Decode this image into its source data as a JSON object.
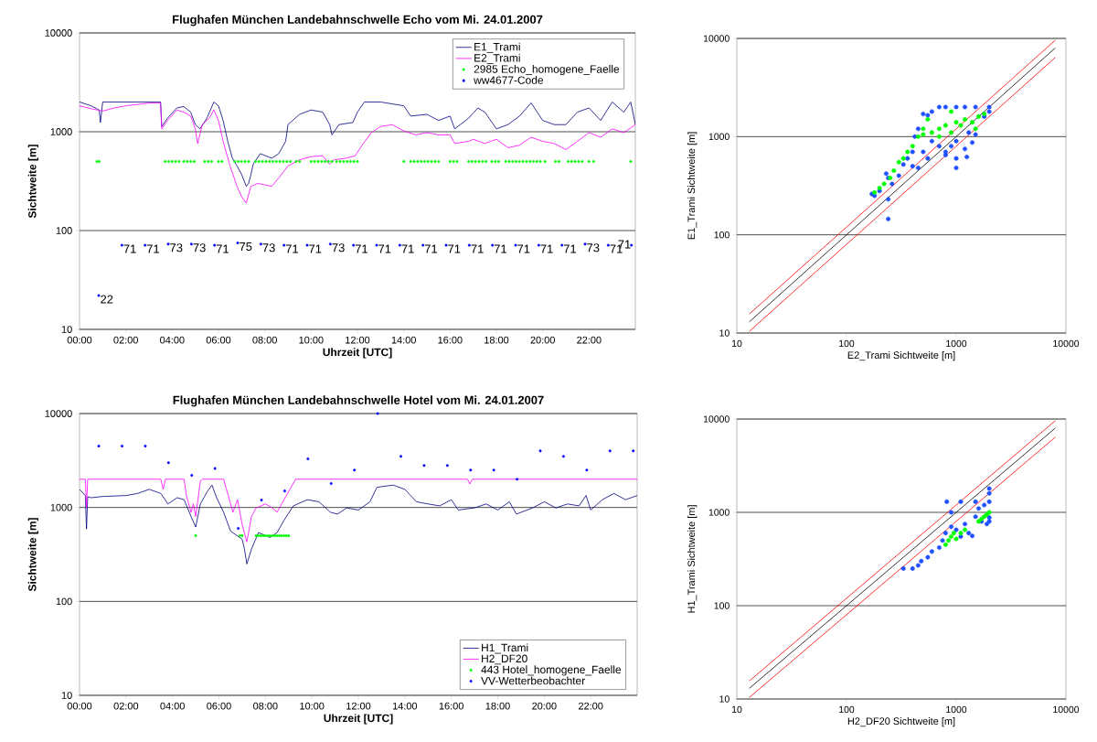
{
  "chart_data": [
    {
      "type": "line",
      "title": "Flughafen München Landebahnschwelle Echo vom Mi. 24.01.2007",
      "xlabel": "Uhrzeit [UTC]",
      "ylabel": "Sichtweite [m]",
      "log": "y",
      "grid": "y",
      "legend": "top right",
      "xlim": [
        0,
        24
      ],
      "ylim": [
        10,
        10000
      ],
      "xticks": [
        {
          "value": 0,
          "label": "00:00"
        },
        {
          "value": 2,
          "label": "02:00"
        },
        {
          "value": 4,
          "label": "04:00"
        },
        {
          "value": 6,
          "label": "06:00"
        },
        {
          "value": 8,
          "label": "08:00"
        },
        {
          "value": 10,
          "label": "10:00"
        },
        {
          "value": 12,
          "label": "12:00"
        },
        {
          "value": 14,
          "label": "14:00"
        },
        {
          "value": 16,
          "label": "16:00"
        },
        {
          "value": 18,
          "label": "18:00"
        },
        {
          "value": 20,
          "label": "20:00"
        },
        {
          "value": 22,
          "label": "22:00"
        }
      ],
      "yticks": [
        10,
        100,
        1000,
        10000
      ],
      "series": [
        {
          "name": "E1_Trami",
          "type": "line",
          "color": "#000080",
          "x": [
            0,
            0.5,
            0.85,
            0.9,
            1.0,
            2,
            3,
            3.5,
            3.55,
            3.8,
            4.2,
            4.5,
            4.8,
            5.0,
            5.2,
            5.5,
            5.8,
            6.0,
            6.2,
            6.4,
            6.6,
            6.8,
            7.0,
            7.2,
            7.3,
            7.4,
            7.5,
            7.8,
            8.3,
            8.6,
            8.9,
            9.0,
            9.5,
            10,
            10.5,
            10.8,
            10.9,
            11.2,
            11.8,
            12.0,
            12.3,
            13,
            14,
            14.3,
            15,
            15.5,
            16,
            16.2,
            16.8,
            17.2,
            17.5,
            18,
            18.5,
            19,
            19.5,
            20,
            20.5,
            21,
            21.5,
            22,
            22.5,
            23,
            23.5,
            23.8,
            24
          ],
          "values": [
            2000,
            1830,
            1660,
            1240,
            2000,
            2000,
            2000,
            2000,
            1130,
            1370,
            1740,
            1800,
            1580,
            1180,
            1070,
            1370,
            2000,
            1830,
            1300,
            800,
            540,
            450,
            370,
            280,
            300,
            370,
            470,
            600,
            540,
            600,
            800,
            1180,
            1500,
            1660,
            1580,
            1180,
            930,
            1180,
            1240,
            1580,
            2000,
            2000,
            1830,
            1440,
            1500,
            1300,
            1440,
            1070,
            1370,
            1740,
            1580,
            1070,
            1180,
            1440,
            1960,
            1300,
            1180,
            1180,
            1580,
            1740,
            1300,
            2000,
            1580,
            2000,
            1180
          ]
        },
        {
          "name": "E2_Trami",
          "type": "line",
          "color": "#ff00ff",
          "x": [
            0,
            0.5,
            1,
            1.5,
            2,
            3,
            3.5,
            3.55,
            3.8,
            4.2,
            4.5,
            4.8,
            5.0,
            5.1,
            5.3,
            5.6,
            5.8,
            6.0,
            6.2,
            6.5,
            6.8,
            7.0,
            7.2,
            7.4,
            7.7,
            8,
            8.3,
            8.6,
            9,
            9.5,
            10,
            10.5,
            10.8,
            11,
            11.5,
            11.9,
            12.2,
            12.6,
            13,
            13.5,
            14,
            14.5,
            15,
            15.5,
            16,
            16.2,
            16.8,
            17,
            17.5,
            18,
            18.5,
            19,
            19.5,
            20,
            20.5,
            21,
            21.5,
            22,
            22.5,
            23,
            23.5,
            24
          ],
          "values": [
            1830,
            1710,
            1620,
            1740,
            1830,
            1950,
            1950,
            1070,
            1300,
            1660,
            1580,
            1440,
            1070,
            760,
            1180,
            1370,
            1660,
            1300,
            800,
            450,
            280,
            220,
            190,
            280,
            300,
            290,
            280,
            340,
            450,
            520,
            560,
            570,
            470,
            520,
            540,
            570,
            730,
            980,
            1130,
            1180,
            1020,
            930,
            980,
            930,
            930,
            760,
            800,
            840,
            760,
            840,
            690,
            730,
            880,
            800,
            760,
            660,
            800,
            980,
            880,
            1070,
            980,
            1180
          ]
        },
        {
          "name": "2985 Echo_homogene_Faelle",
          "type": "scatter",
          "marker": "circle",
          "color": "#00ff00",
          "x": [
            0.75,
            0.85,
            3.7,
            3.85,
            4.0,
            4.15,
            4.3,
            4.5,
            4.65,
            4.8,
            4.95,
            5.4,
            5.55,
            5.7,
            6.0,
            6.15,
            6.7,
            6.85,
            7.0,
            7.15,
            7.3,
            7.6,
            7.75,
            7.9,
            8.05,
            8.2,
            8.35,
            8.5,
            8.65,
            8.8,
            8.95,
            9.1,
            9.35,
            9.5,
            10.0,
            10.15,
            10.3,
            10.45,
            10.6,
            10.75,
            10.9,
            11.1,
            11.25,
            11.4,
            11.55,
            11.7,
            11.85,
            12.0,
            14.0,
            14.3,
            14.45,
            14.6,
            14.75,
            14.9,
            15.05,
            15.2,
            15.35,
            15.5,
            16.0,
            16.15,
            16.3,
            16.8,
            16.95,
            17.1,
            17.25,
            17.4,
            17.55,
            17.8,
            17.95,
            18.1,
            18.4,
            18.55,
            18.7,
            18.85,
            19.0,
            19.15,
            19.3,
            19.45,
            19.6,
            19.75,
            19.9,
            20.1,
            20.55,
            20.7,
            21.1,
            21.25,
            21.4,
            21.55,
            21.7,
            22.0,
            22.2,
            23.8
          ],
          "values": [
            500,
            500,
            500,
            500,
            500,
            500,
            500,
            500,
            500,
            500,
            500,
            500,
            500,
            500,
            500,
            500,
            500,
            500,
            500,
            500,
            500,
            500,
            500,
            500,
            500,
            500,
            500,
            500,
            500,
            500,
            500,
            500,
            500,
            500,
            500,
            500,
            500,
            500,
            500,
            500,
            500,
            500,
            500,
            500,
            500,
            500,
            500,
            500,
            500,
            500,
            500,
            500,
            500,
            500,
            500,
            500,
            500,
            500,
            500,
            500,
            500,
            500,
            500,
            500,
            500,
            500,
            500,
            500,
            500,
            500,
            500,
            500,
            500,
            500,
            500,
            500,
            500,
            500,
            500,
            500,
            500,
            500,
            500,
            500,
            500,
            500,
            500,
            500,
            500,
            500,
            500,
            500
          ]
        },
        {
          "name": "ww4677-Code",
          "type": "scatter",
          "marker": "circle",
          "color": "#0000ff",
          "x": [
            0.83,
            1.83,
            2.83,
            3.83,
            4.83,
            5.83,
            6.83,
            7.83,
            8.83,
            9.83,
            10.83,
            11.83,
            12.83,
            13.83,
            14.83,
            15.83,
            16.83,
            17.83,
            18.83,
            19.83,
            20.83,
            21.83,
            22.83,
            23.83
          ],
          "values": [
            22,
            71,
            71,
            73,
            73,
            71,
            75,
            73,
            71,
            71,
            73,
            71,
            71,
            71,
            71,
            71,
            71,
            71,
            71,
            71,
            71,
            73,
            71,
            71
          ],
          "value_labels": [
            "22",
            "71",
            "71",
            "73",
            "73",
            "71",
            "75",
            "73",
            "71",
            "71",
            "73",
            "71",
            "71",
            "71",
            "71",
            "71",
            "71",
            "71",
            "71",
            "71",
            "71",
            "73",
            "71",
            "71"
          ]
        }
      ]
    },
    {
      "type": "scatter",
      "xlabel": "E2_Trami Sichtweite [m]",
      "ylabel": "E1_Trami Sichtweite [m]",
      "log": "xy",
      "grid": "y",
      "xlim": [
        10,
        10000
      ],
      "ylim": [
        10,
        10000
      ],
      "xticks": [
        10,
        100,
        1000,
        10000
      ],
      "yticks": [
        10,
        100,
        1000,
        10000
      ],
      "series": [
        {
          "type": "scatter",
          "marker": "circle",
          "color": "#2050ff",
          "x": [
            170,
            180,
            200,
            230,
            240,
            240,
            240,
            260,
            300,
            330,
            360,
            400,
            450,
            400,
            420,
            450,
            500,
            550,
            600,
            700,
            800,
            1000,
            1200,
            1500,
            2000,
            2000,
            1800,
            1500,
            1300,
            1000,
            900,
            800,
            700,
            600,
            1000,
            1000,
            1200,
            1250,
            1400,
            800,
            550,
            500
          ],
          "values": [
            260,
            250,
            280,
            420,
            380,
            230,
            145,
            330,
            400,
            520,
            600,
            500,
            480,
            700,
            1000,
            1200,
            1700,
            1650,
            1800,
            2000,
            2000,
            2000,
            2000,
            2000,
            2000,
            1800,
            1600,
            1050,
            1100,
            900,
            800,
            700,
            800,
            900,
            480,
            600,
            750,
            620,
            870,
            650,
            600,
            700
          ]
        },
        {
          "type": "scatter",
          "marker": "circle",
          "color": "#00ff00",
          "x": [
            180,
            200,
            220,
            250,
            270,
            300,
            330,
            360,
            400,
            450,
            500,
            550,
            600,
            700,
            800,
            900,
            1000,
            1100,
            1200,
            1400,
            1600,
            1800,
            1500,
            900,
            700,
            500
          ],
          "values": [
            270,
            300,
            330,
            380,
            450,
            550,
            600,
            700,
            800,
            1000,
            1200,
            1500,
            1100,
            1200,
            1300,
            1800,
            1400,
            1300,
            1500,
            1400,
            1600,
            1700,
            1200,
            1100,
            1000,
            1050
          ]
        },
        {
          "type": "line",
          "color": "#ff0000",
          "x": [
            13,
            8000
          ],
          "values": [
            15.6,
            9600
          ]
        },
        {
          "type": "line",
          "color": "#000000",
          "x": [
            13,
            8000
          ],
          "values": [
            13,
            8000
          ]
        },
        {
          "type": "line",
          "color": "#ff0000",
          "x": [
            13,
            8000
          ],
          "values": [
            10.4,
            6400
          ]
        }
      ]
    },
    {
      "type": "line",
      "title": "Flughafen München Landebahnschwelle Hotel vom Mi. 24.01.2007",
      "xlabel": "Uhrzeit [UTC]",
      "ylabel": "Sichtweite [m]",
      "log": "y",
      "grid": "y",
      "legend": "bottom right",
      "xlim": [
        0,
        24
      ],
      "ylim": [
        10,
        10000
      ],
      "xticks": [
        {
          "value": 0,
          "label": "00:00"
        },
        {
          "value": 2,
          "label": "02:00"
        },
        {
          "value": 4,
          "label": "04:00"
        },
        {
          "value": 6,
          "label": "06:00"
        },
        {
          "value": 8,
          "label": "08:00"
        },
        {
          "value": 10,
          "label": "10:00"
        },
        {
          "value": 12,
          "label": "12:00"
        },
        {
          "value": 14,
          "label": "14:00"
        },
        {
          "value": 16,
          "label": "16:00"
        },
        {
          "value": 18,
          "label": "18:00"
        },
        {
          "value": 20,
          "label": "20:00"
        },
        {
          "value": 22,
          "label": "22:00"
        }
      ],
      "yticks": [
        10,
        100,
        1000,
        10000
      ],
      "series": [
        {
          "name": "H1_Trami",
          "type": "line",
          "color": "#000080",
          "x": [
            0,
            0.25,
            0.3,
            0.35,
            0.5,
            1,
            2,
            2.5,
            3,
            3.5,
            3.8,
            4.2,
            4.5,
            4.8,
            5.0,
            5.2,
            5.5,
            5.7,
            5.9,
            6.2,
            6.5,
            7.0,
            7.1,
            7.2,
            7.4,
            7.7,
            8.2,
            8.5,
            8.8,
            9.2,
            9.8,
            10.3,
            10.8,
            11.1,
            11.5,
            12,
            12.5,
            12.8,
            13.5,
            14,
            14.5,
            15,
            15.5,
            16,
            16.3,
            17,
            17.5,
            18,
            18.5,
            18.8,
            19.5,
            20,
            20.5,
            21,
            21.5,
            21.8,
            22,
            22.5,
            23,
            23.5,
            24
          ],
          "values": [
            1560,
            1340,
            590,
            1300,
            1270,
            1310,
            1340,
            1410,
            1560,
            1410,
            1090,
            1270,
            1210,
            800,
            620,
            1090,
            1480,
            1730,
            1270,
            890,
            560,
            460,
            360,
            250,
            360,
            540,
            480,
            540,
            730,
            1040,
            1210,
            1150,
            890,
            850,
            990,
            940,
            1150,
            1640,
            1730,
            1560,
            1150,
            1090,
            1040,
            1210,
            940,
            990,
            1090,
            940,
            1150,
            850,
            990,
            1150,
            990,
            1090,
            1040,
            1340,
            940,
            1210,
            1410,
            1210,
            1340
          ]
        },
        {
          "name": "H2_DF20",
          "type": "line",
          "color": "#ff00ff",
          "x": [
            0,
            0.25,
            0.3,
            0.35,
            3.5,
            3.6,
            3.7,
            4.5,
            4.6,
            4.8,
            4.9,
            5.0,
            5.2,
            5.3,
            6.2,
            6.4,
            6.6,
            6.8,
            7.0,
            7.2,
            7.4,
            7.6,
            8.0,
            8.3,
            8.5,
            8.7,
            9.0,
            9.3,
            16.7,
            16.8,
            16.9,
            24
          ],
          "values": [
            2000,
            2000,
            990,
            2000,
            2000,
            1560,
            2000,
            2000,
            1340,
            890,
            1090,
            800,
            1910,
            2000,
            2000,
            1340,
            890,
            1210,
            660,
            430,
            800,
            990,
            1090,
            990,
            890,
            1090,
            1480,
            2000,
            2000,
            1780,
            2000,
            2000
          ]
        },
        {
          "name": "443 Hotel_homogene_Faelle",
          "type": "scatter",
          "marker": "circle",
          "color": "#00ff00",
          "x": [
            5.0,
            6.9,
            7.0,
            7.6,
            7.7,
            7.8,
            7.9,
            8.0,
            8.1,
            8.2,
            8.3,
            8.4,
            8.5,
            8.6,
            8.7,
            8.8,
            8.9,
            9.0
          ],
          "values": [
            500,
            500,
            500,
            500,
            500,
            500,
            500,
            500,
            500,
            500,
            500,
            500,
            500,
            500,
            500,
            500,
            500,
            500
          ]
        },
        {
          "name": "VV-Wetterbeobachter",
          "type": "scatter",
          "marker": "circle",
          "color": "#0000ff",
          "x": [
            0.83,
            1.83,
            2.83,
            3.83,
            4.83,
            5.83,
            6.83,
            7.83,
            8.83,
            9.83,
            10.83,
            11.83,
            12.83,
            13.83,
            14.83,
            15.83,
            16.83,
            17.83,
            18.83,
            19.83,
            20.83,
            21.83,
            22.83,
            23.83
          ],
          "values": [
            4500,
            4500,
            4500,
            3000,
            2200,
            2600,
            600,
            1200,
            1500,
            3300,
            1800,
            2500,
            10000,
            3500,
            2800,
            2800,
            2500,
            2500,
            2000,
            4000,
            3500,
            2500,
            4000,
            4000
          ]
        }
      ]
    },
    {
      "type": "scatter",
      "xlabel": "H2_DF20 Sichtweite [m]",
      "ylabel": "H1_Trami Sichtweite [m]",
      "log": "xy",
      "grid": "y",
      "xlim": [
        10,
        10000
      ],
      "ylim": [
        10,
        10000
      ],
      "xticks": [
        10,
        100,
        1000,
        10000
      ],
      "yticks": [
        10,
        100,
        1000,
        10000
      ],
      "series": [
        {
          "type": "scatter",
          "marker": "circle",
          "color": "#2050ff",
          "x": [
            330,
            400,
            450,
            480,
            550,
            600,
            700,
            750,
            800,
            900,
            1000,
            1100,
            1200,
            1300,
            1400,
            1500,
            1600,
            1800,
            2000,
            2000,
            2000,
            2000,
            2000,
            820,
            900,
            1100,
            1500,
            1700,
            1900
          ],
          "values": [
            250,
            250,
            270,
            300,
            330,
            380,
            420,
            500,
            600,
            700,
            650,
            550,
            750,
            600,
            560,
            900,
            1100,
            1200,
            800,
            880,
            1300,
            1600,
            1800,
            1300,
            1000,
            1300,
            1300,
            800,
            750
          ]
        },
        {
          "type": "scatter",
          "marker": "circle",
          "color": "#00ff00",
          "x": [
            800,
            850,
            900,
            950,
            1000,
            1100,
            1200,
            1700,
            1800,
            1900,
            2000,
            1600
          ],
          "values": [
            450,
            500,
            550,
            600,
            520,
            600,
            650,
            850,
            900,
            950,
            1000,
            800
          ]
        },
        {
          "type": "line",
          "color": "#ff0000",
          "x": [
            13,
            8000
          ],
          "values": [
            15.6,
            9600
          ]
        },
        {
          "type": "line",
          "color": "#000000",
          "x": [
            13,
            8000
          ],
          "values": [
            13,
            8000
          ]
        },
        {
          "type": "line",
          "color": "#ff0000",
          "x": [
            13,
            8000
          ],
          "values": [
            10.4,
            6400
          ]
        }
      ]
    }
  ]
}
